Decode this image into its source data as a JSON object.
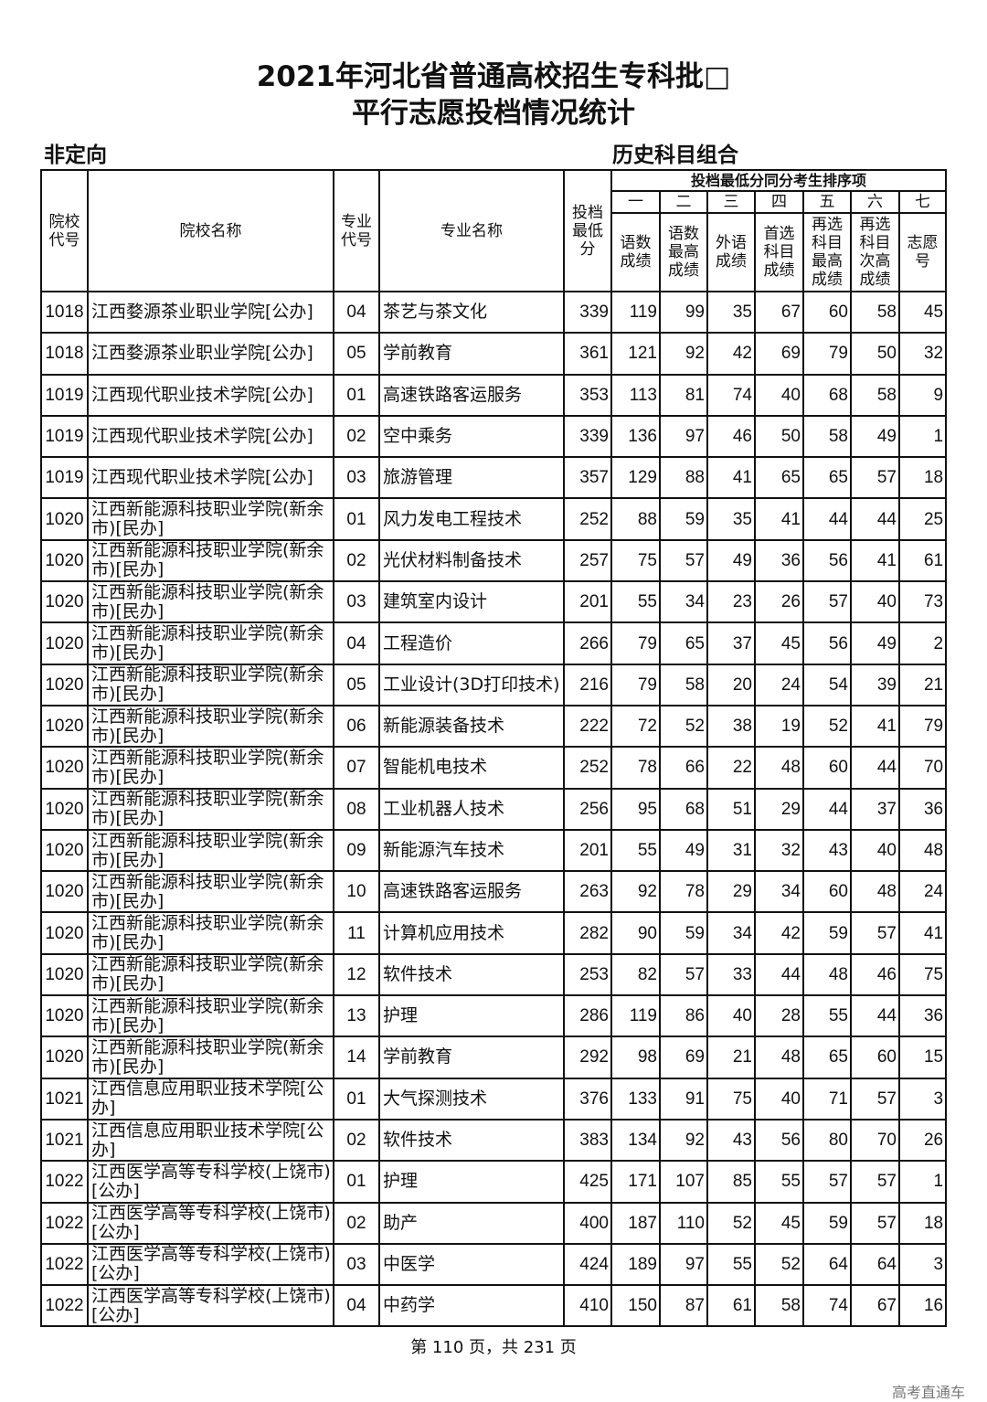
{
  "title_line1": "2021年河北省普通高校招生专科批□",
  "title_line2": "平行志愿投档情况统计",
  "subtitle_left": "非定向",
  "subtitle_right": "历史科目组合",
  "headers": {
    "school_code": "院校代号",
    "school_name": "院校名称",
    "major_code": "专业代号",
    "major_name": "专业名称",
    "min_score": "投档最低分",
    "group": "投档最低分同分考生排序项",
    "numerals": [
      "一",
      "二",
      "三",
      "四",
      "五",
      "六",
      "七"
    ],
    "sort_labels": [
      "语数成绩",
      "语数最高成绩",
      "外语成绩",
      "首选科目成绩",
      "再选科目最高成绩",
      "再选科目次高成绩",
      "志愿号"
    ]
  },
  "rows": [
    [
      "1018",
      "江西婺源茶业职业学院[公办]",
      "04",
      "茶艺与茶文化",
      "339",
      "119",
      "99",
      "35",
      "67",
      "60",
      "58",
      "45"
    ],
    [
      "1018",
      "江西婺源茶业职业学院[公办]",
      "05",
      "学前教育",
      "361",
      "121",
      "92",
      "42",
      "69",
      "79",
      "50",
      "32"
    ],
    [
      "1019",
      "江西现代职业技术学院[公办]",
      "01",
      "高速铁路客运服务",
      "353",
      "113",
      "81",
      "74",
      "40",
      "68",
      "58",
      "9"
    ],
    [
      "1019",
      "江西现代职业技术学院[公办]",
      "02",
      "空中乘务",
      "339",
      "136",
      "97",
      "46",
      "50",
      "58",
      "49",
      "1"
    ],
    [
      "1019",
      "江西现代职业技术学院[公办]",
      "03",
      "旅游管理",
      "357",
      "129",
      "88",
      "41",
      "65",
      "65",
      "57",
      "18"
    ],
    [
      "1020",
      "江西新能源科技职业学院(新余市)[民办]",
      "01",
      "风力发电工程技术",
      "252",
      "88",
      "59",
      "35",
      "41",
      "44",
      "44",
      "25"
    ],
    [
      "1020",
      "江西新能源科技职业学院(新余市)[民办]",
      "02",
      "光伏材料制备技术",
      "257",
      "75",
      "57",
      "49",
      "36",
      "56",
      "41",
      "61"
    ],
    [
      "1020",
      "江西新能源科技职业学院(新余市)[民办]",
      "03",
      "建筑室内设计",
      "201",
      "55",
      "34",
      "23",
      "26",
      "57",
      "40",
      "73"
    ],
    [
      "1020",
      "江西新能源科技职业学院(新余市)[民办]",
      "04",
      "工程造价",
      "266",
      "79",
      "65",
      "37",
      "45",
      "56",
      "49",
      "2"
    ],
    [
      "1020",
      "江西新能源科技职业学院(新余市)[民办]",
      "05",
      "工业设计(3D打印技术)",
      "216",
      "79",
      "58",
      "20",
      "24",
      "54",
      "39",
      "21"
    ],
    [
      "1020",
      "江西新能源科技职业学院(新余市)[民办]",
      "06",
      "新能源装备技术",
      "222",
      "72",
      "52",
      "38",
      "19",
      "52",
      "41",
      "79"
    ],
    [
      "1020",
      "江西新能源科技职业学院(新余市)[民办]",
      "07",
      "智能机电技术",
      "252",
      "78",
      "66",
      "22",
      "48",
      "60",
      "44",
      "70"
    ],
    [
      "1020",
      "江西新能源科技职业学院(新余市)[民办]",
      "08",
      "工业机器人技术",
      "256",
      "95",
      "68",
      "51",
      "29",
      "44",
      "37",
      "36"
    ],
    [
      "1020",
      "江西新能源科技职业学院(新余市)[民办]",
      "09",
      "新能源汽车技术",
      "201",
      "55",
      "49",
      "31",
      "32",
      "43",
      "40",
      "48"
    ],
    [
      "1020",
      "江西新能源科技职业学院(新余市)[民办]",
      "10",
      "高速铁路客运服务",
      "263",
      "92",
      "78",
      "29",
      "34",
      "60",
      "48",
      "24"
    ],
    [
      "1020",
      "江西新能源科技职业学院(新余市)[民办]",
      "11",
      "计算机应用技术",
      "282",
      "90",
      "59",
      "34",
      "42",
      "59",
      "57",
      "41"
    ],
    [
      "1020",
      "江西新能源科技职业学院(新余市)[民办]",
      "12",
      "软件技术",
      "253",
      "82",
      "57",
      "33",
      "44",
      "48",
      "46",
      "75"
    ],
    [
      "1020",
      "江西新能源科技职业学院(新余市)[民办]",
      "13",
      "护理",
      "286",
      "119",
      "86",
      "40",
      "28",
      "55",
      "44",
      "36"
    ],
    [
      "1020",
      "江西新能源科技职业学院(新余市)[民办]",
      "14",
      "学前教育",
      "292",
      "98",
      "69",
      "21",
      "48",
      "65",
      "60",
      "15"
    ],
    [
      "1021",
      "江西信息应用职业技术学院[公办]",
      "01",
      "大气探测技术",
      "376",
      "133",
      "91",
      "75",
      "40",
      "71",
      "57",
      "3"
    ],
    [
      "1021",
      "江西信息应用职业技术学院[公办]",
      "02",
      "软件技术",
      "383",
      "134",
      "92",
      "43",
      "56",
      "80",
      "70",
      "26"
    ],
    [
      "1022",
      "江西医学高等专科学校(上饶市)[公办]",
      "01",
      "护理",
      "425",
      "171",
      "107",
      "85",
      "55",
      "57",
      "57",
      "1"
    ],
    [
      "1022",
      "江西医学高等专科学校(上饶市)[公办]",
      "02",
      "助产",
      "400",
      "187",
      "110",
      "52",
      "45",
      "59",
      "57",
      "18"
    ],
    [
      "1022",
      "江西医学高等专科学校(上饶市)[公办]",
      "03",
      "中医学",
      "424",
      "189",
      "97",
      "55",
      "52",
      "64",
      "64",
      "3"
    ],
    [
      "1022",
      "江西医学高等专科学校(上饶市)[公办]",
      "04",
      "中药学",
      "410",
      "150",
      "87",
      "61",
      "58",
      "74",
      "67",
      "16"
    ]
  ],
  "footer": "第 110 页，共 231 页",
  "watermark": "高考直通车"
}
